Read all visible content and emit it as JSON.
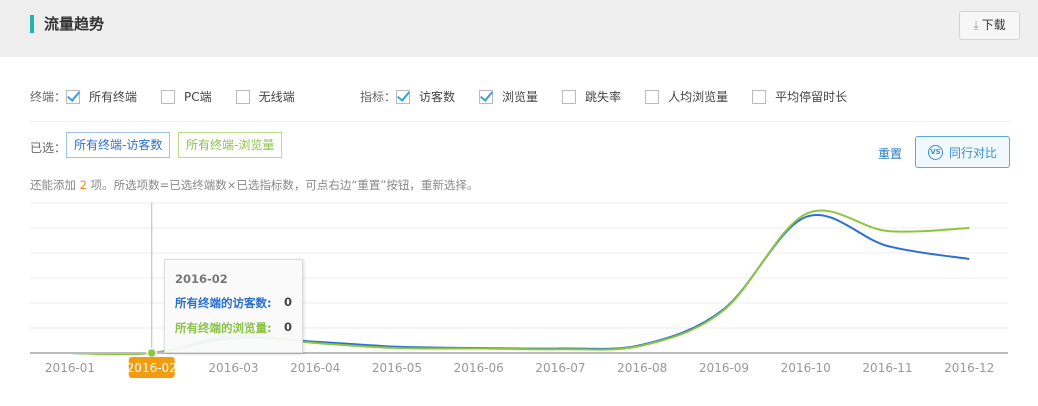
{
  "header": {
    "title": "流量趋势",
    "download_label": "下载",
    "download_icon": "download-icon"
  },
  "filters": {
    "terminal_label": "终端：",
    "terminals": [
      {
        "label": "所有终端",
        "checked": true
      },
      {
        "label": "PC端",
        "checked": false
      },
      {
        "label": "无线端",
        "checked": false
      }
    ],
    "metric_label": "指标：",
    "metrics": [
      {
        "label": "访客数",
        "checked": true
      },
      {
        "label": "浏览量",
        "checked": true
      },
      {
        "label": "跳失率",
        "checked": false
      },
      {
        "label": "人均浏览量",
        "checked": false
      },
      {
        "label": "平均停留时长",
        "checked": false
      }
    ]
  },
  "selected": {
    "label": "已选：",
    "tags": [
      "所有终端-访客数",
      "所有终端-浏览量"
    ],
    "reset_label": "重置",
    "compare_label": "同行对比",
    "compare_icon": "vs-icon"
  },
  "hint": {
    "pre": "还能添加 ",
    "count": "2",
    "post": " 项。所选项数=已选终端数×已选指标数，可点右边“重置”按钮，重新选择。"
  },
  "tooltip": {
    "date": "2016-02",
    "rows": [
      {
        "label": "所有终端的访客数:",
        "value": "0"
      },
      {
        "label": "所有终端的浏览量:",
        "value": "0"
      }
    ]
  },
  "chart_data": {
    "type": "line",
    "categories": [
      "2016-01",
      "2016-02",
      "2016-03",
      "2016-04",
      "2016-05",
      "2016-06",
      "2016-07",
      "2016-08",
      "2016-09",
      "2016-10",
      "2016-11",
      "2016-12"
    ],
    "highlighted_category": "2016-02",
    "ylim": [
      0,
      6
    ],
    "grid": true,
    "series": [
      {
        "name": "所有终端的访客数",
        "color": "#2a6fd6",
        "values": [
          0,
          0,
          0.6,
          0.45,
          0.25,
          0.2,
          0.18,
          0.33,
          1.76,
          5.44,
          4.28,
          3.76
        ]
      },
      {
        "name": "所有终端的浏览量",
        "color": "#8cc63f",
        "values": [
          0,
          0,
          0.7,
          0.4,
          0.2,
          0.18,
          0.15,
          0.3,
          1.72,
          5.56,
          4.88,
          5.0
        ]
      }
    ]
  }
}
